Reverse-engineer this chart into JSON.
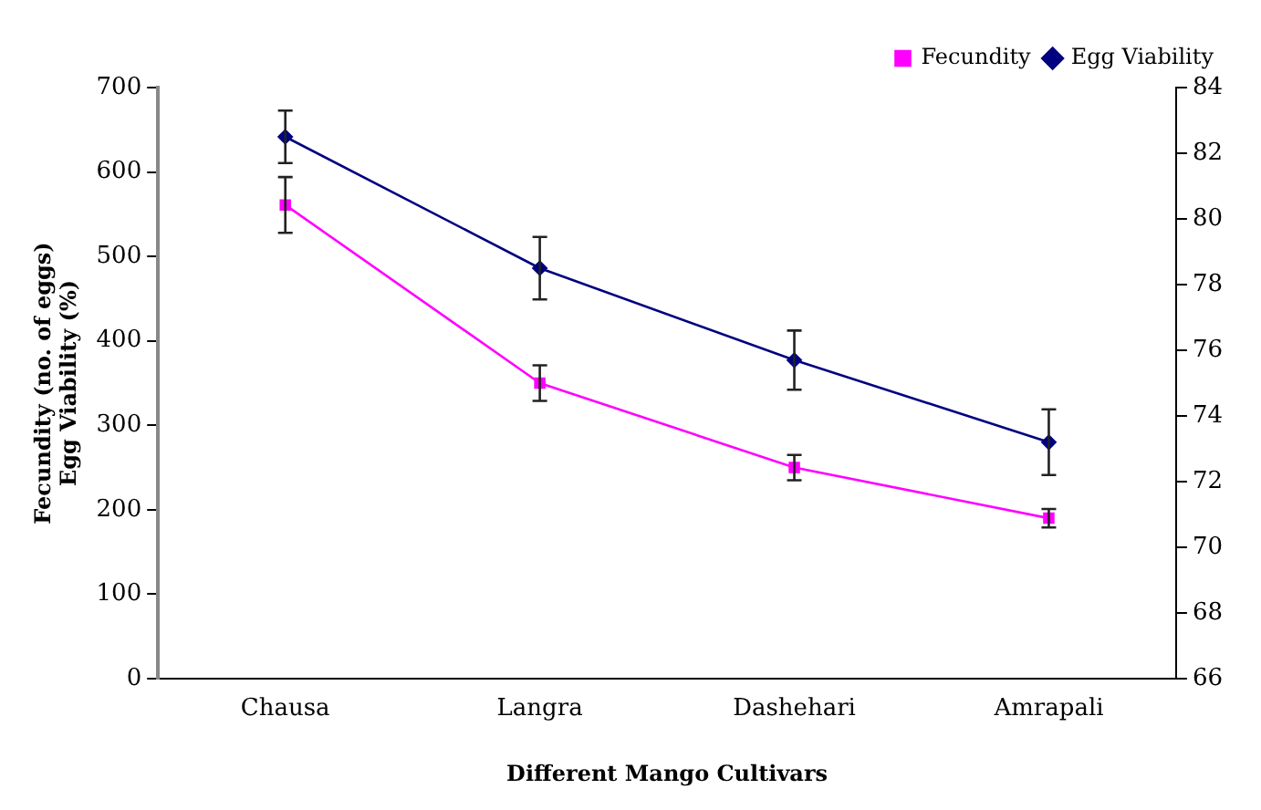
{
  "chart_data": {
    "type": "line",
    "xlabel": "Different Mango Cultivars",
    "ylabel": "Fecundity (no. of eggs)\nEgg Viability (%)",
    "categories": [
      "Chausa",
      "Langra",
      "Dashehari",
      "Amrapali"
    ],
    "series": [
      {
        "name": "Fecundity",
        "color": "#ff00ff",
        "marker": "square",
        "values": [
          561,
          350,
          250,
          190
        ],
        "errors": [
          33,
          21,
          15,
          11
        ]
      },
      {
        "name": "Egg Viability",
        "color": "#000080",
        "marker": "diamond",
        "axis": "y2",
        "values": [
          82.5,
          78.5,
          75.7,
          73.2
        ],
        "errors": [
          0.8,
          0.95,
          0.9,
          1.0
        ]
      }
    ],
    "ylim": [
      0,
      700
    ],
    "yticks": [
      0,
      100,
      200,
      300,
      400,
      500,
      600,
      700
    ],
    "y2lim": [
      66,
      84
    ],
    "y2ticks": [
      66,
      68,
      70,
      72,
      74,
      76,
      78,
      80,
      82,
      84
    ],
    "grid": false,
    "legend": "top right",
    "line_style": "solid"
  }
}
